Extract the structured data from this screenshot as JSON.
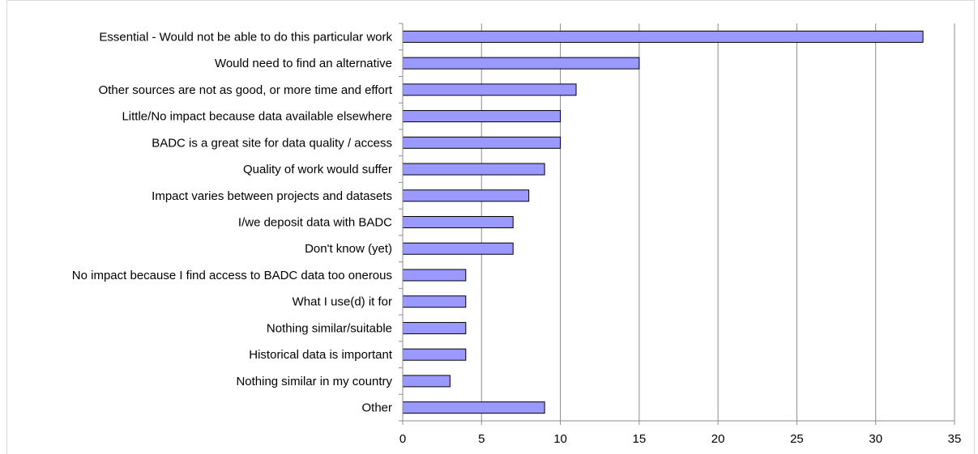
{
  "chart_data": {
    "type": "bar",
    "orientation": "horizontal",
    "categories": [
      "Essential - Would not be able to do this particular work",
      "Would need to find an alternative",
      "Other sources are not as good, or more time and effort",
      "Little/No impact because data available elsewhere",
      "BADC is a great site for data quality / access",
      "Quality of  work would suffer",
      "Impact varies between projects and datasets",
      "I/we deposit data with BADC",
      "Don't know (yet)",
      "No impact because I find access to BADC data too onerous",
      "What I use(d) it for",
      "Nothing similar/suitable ",
      "Historical data is important",
      "Nothing similar in my country",
      "Other"
    ],
    "values": [
      33,
      15,
      11,
      10,
      10,
      9,
      8,
      7,
      7,
      4,
      4,
      4,
      4,
      3,
      9
    ],
    "xlim": [
      0,
      35
    ],
    "xticks": [
      "0",
      "5",
      "10",
      "15",
      "20",
      "25",
      "30",
      "35"
    ],
    "grid": "vertical",
    "bar_color": "#9999ff",
    "bar_edge_color": "#000000",
    "title": "",
    "xlabel": "",
    "ylabel": ""
  }
}
